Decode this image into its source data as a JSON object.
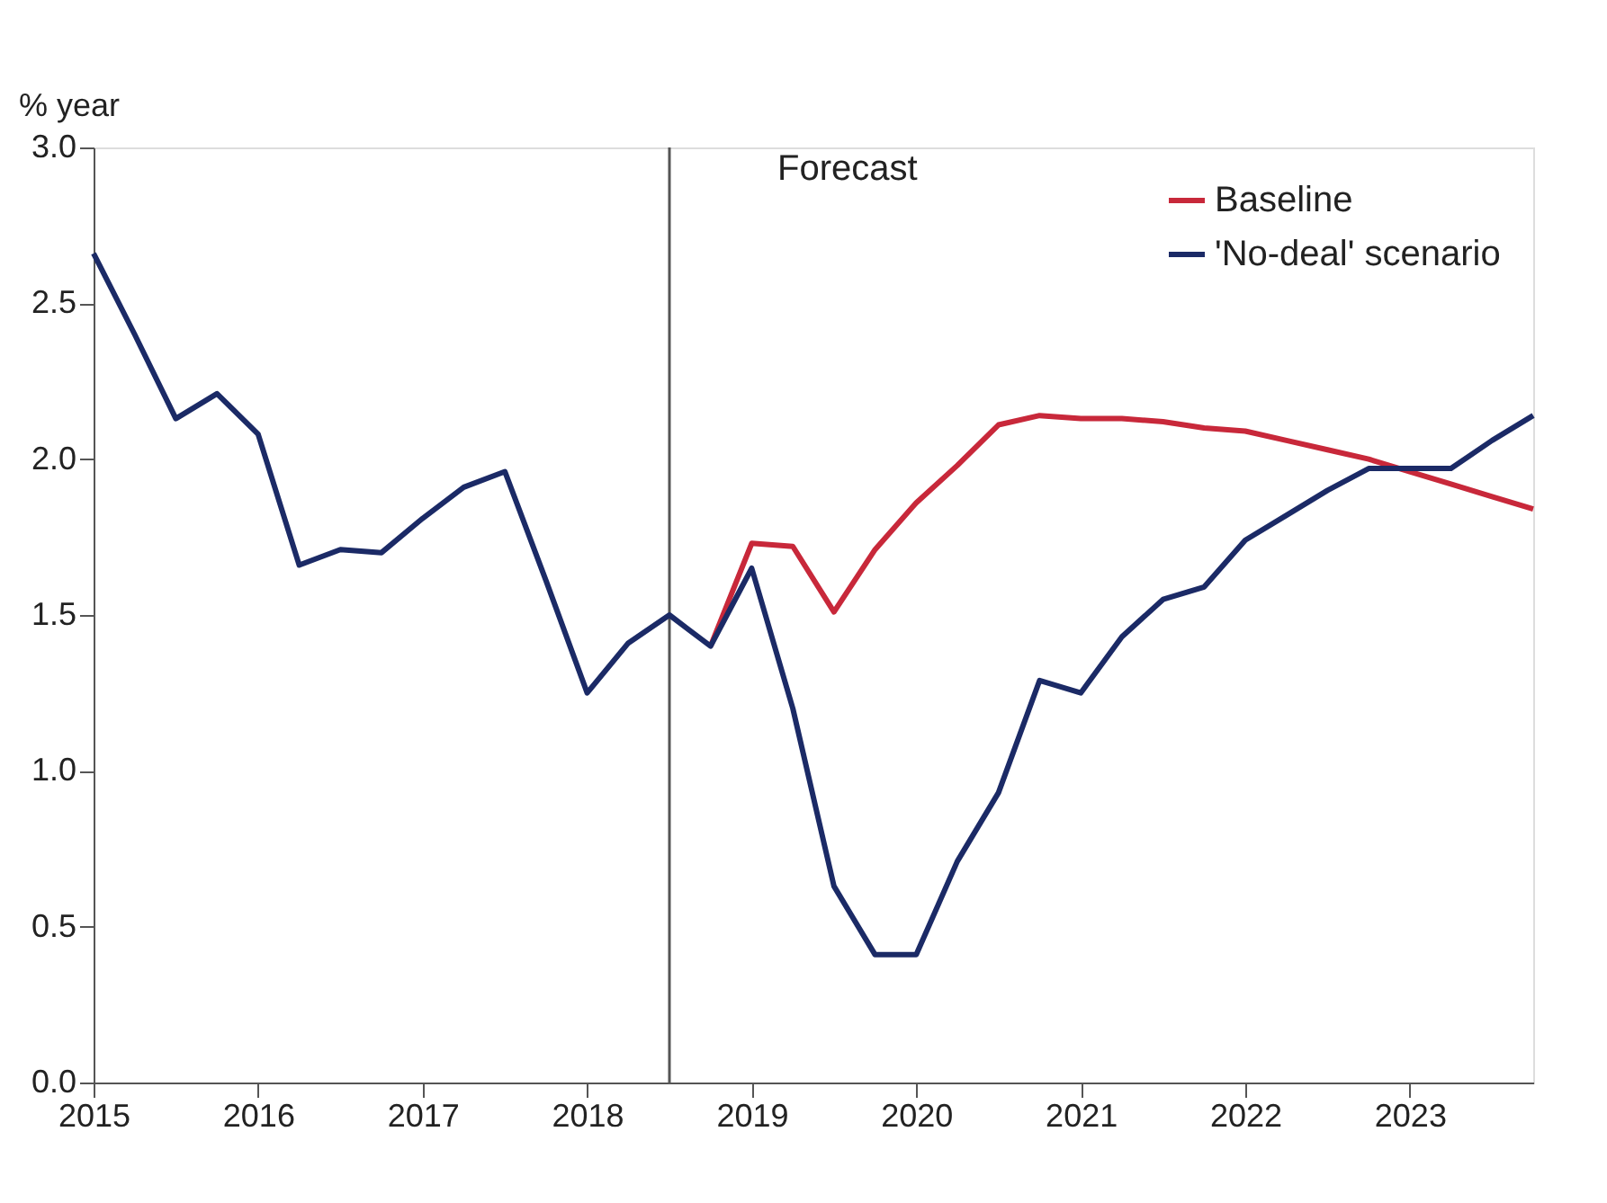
{
  "chart_data": {
    "type": "line",
    "ylabel": "% year",
    "x": [
      2015.0,
      2015.25,
      2015.5,
      2015.75,
      2016.0,
      2016.25,
      2016.5,
      2016.75,
      2017.0,
      2017.25,
      2017.5,
      2017.75,
      2018.0,
      2018.25,
      2018.5,
      2018.75,
      2019.0,
      2019.25,
      2019.5,
      2019.75,
      2020.0,
      2020.25,
      2020.5,
      2020.75,
      2021.0,
      2021.25,
      2021.5,
      2021.75,
      2022.0,
      2022.25,
      2022.5,
      2022.75,
      2023.0,
      2023.25,
      2023.5,
      2023.75
    ],
    "series": [
      {
        "name": "Baseline",
        "color": "#c8283a",
        "values": [
          null,
          null,
          null,
          null,
          null,
          null,
          null,
          null,
          null,
          null,
          null,
          null,
          null,
          null,
          null,
          1.4,
          1.73,
          1.72,
          1.51,
          1.71,
          1.86,
          1.98,
          2.11,
          2.14,
          2.13,
          2.13,
          2.12,
          2.1,
          2.09,
          2.06,
          2.03,
          2.0,
          1.96,
          1.92,
          1.88,
          1.84
        ]
      },
      {
        "name": "'No-deal' scenario",
        "color": "#1b2a66",
        "values": [
          2.66,
          2.4,
          2.13,
          2.21,
          2.08,
          1.66,
          1.71,
          1.7,
          1.81,
          1.91,
          1.96,
          1.61,
          1.25,
          1.41,
          1.5,
          1.4,
          1.65,
          1.2,
          0.63,
          0.41,
          0.41,
          0.71,
          0.93,
          1.29,
          1.25,
          1.43,
          1.55,
          1.59,
          1.74,
          1.82,
          1.9,
          1.97,
          1.97,
          1.97,
          2.06,
          2.14
        ]
      }
    ],
    "xlim": [
      2015,
      2023.75
    ],
    "xticks": [
      2015,
      2016,
      2017,
      2018,
      2019,
      2020,
      2021,
      2022,
      2023
    ],
    "ylim": [
      0,
      3
    ],
    "yticks": [
      {
        "value": 0,
        "label": "0.0"
      },
      0.5,
      {
        "value": 1,
        "label": "1.0"
      },
      1.5,
      {
        "value": 2,
        "label": "2.0"
      },
      2.5,
      {
        "value": 3,
        "label": "3.0"
      }
    ],
    "ref_lines": [
      {
        "axis": "x",
        "value": 2018.5,
        "label": "Forecast",
        "color": "#555555"
      }
    ],
    "grid": false,
    "legend": "top right",
    "marker": "none",
    "line_style": "solid"
  }
}
